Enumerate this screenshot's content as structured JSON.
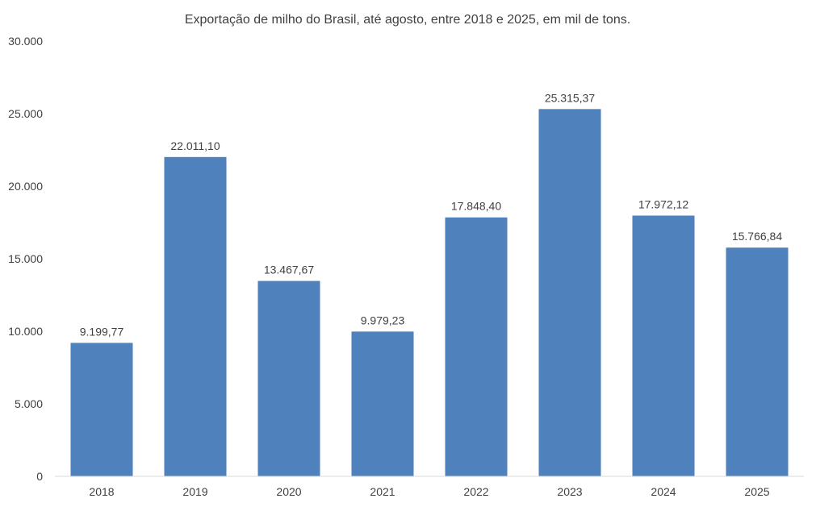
{
  "chart_data": {
    "type": "bar",
    "title": "Exportação de milho do Brasil, até agosto, entre 2018 e 2025, em mil de tons.",
    "xlabel": "",
    "ylabel": "",
    "categories": [
      "2018",
      "2019",
      "2020",
      "2021",
      "2022",
      "2023",
      "2024",
      "2025"
    ],
    "values": [
      9199.77,
      22011.1,
      13467.67,
      9979.23,
      17848.4,
      25315.37,
      17972.12,
      15766.84
    ],
    "data_labels": [
      "9.199,77",
      "22.011,10",
      "13.467,67",
      "9.979,23",
      "17.848,40",
      "25.315,37",
      "17.972,12",
      "15.766,84"
    ],
    "ylim": [
      0,
      30000
    ],
    "yticks": [
      0,
      5000,
      10000,
      15000,
      20000,
      25000,
      30000
    ],
    "ytick_labels": [
      "0",
      "5.000",
      "10.000",
      "15.000",
      "20.000",
      "25.000",
      "30.000"
    ],
    "grid": false,
    "bar_color": "#4f81bd",
    "axis_color": "#d9d9d9"
  }
}
